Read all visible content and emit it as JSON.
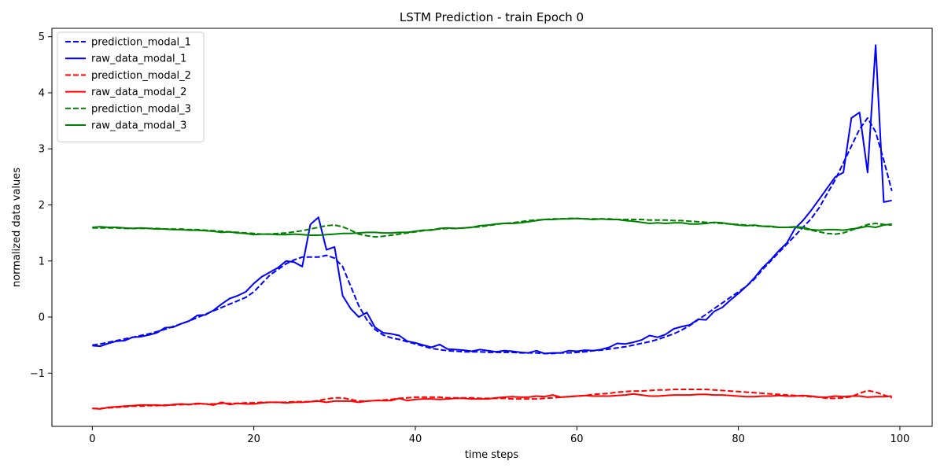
{
  "chart_data": {
    "type": "line",
    "title": "LSTM Prediction - train Epoch 0",
    "xlabel": "time steps",
    "ylabel": "normalized data values",
    "xlim": [
      -5,
      104
    ],
    "ylim": [
      -1.95,
      5.15
    ],
    "xticks": [
      0,
      20,
      40,
      60,
      80,
      100
    ],
    "xtick_labels": [
      "0",
      "20",
      "40",
      "60",
      "80",
      "100"
    ],
    "yticks": [
      -1,
      0,
      1,
      2,
      3,
      4,
      5
    ],
    "ytick_labels": [
      "−1",
      "0",
      "1",
      "2",
      "3",
      "4",
      "5"
    ],
    "grid": false,
    "legend_position": "top-left",
    "colors": {
      "modal_1": "#0000ff",
      "modal_2": "#ff0000",
      "modal_3": "#008000"
    },
    "x": [
      0,
      1,
      2,
      3,
      4,
      5,
      6,
      7,
      8,
      9,
      10,
      11,
      12,
      13,
      14,
      15,
      16,
      17,
      18,
      19,
      20,
      21,
      22,
      23,
      24,
      25,
      26,
      27,
      28,
      29,
      30,
      31,
      32,
      33,
      34,
      35,
      36,
      37,
      38,
      39,
      40,
      41,
      42,
      43,
      44,
      45,
      46,
      47,
      48,
      49,
      50,
      51,
      52,
      53,
      54,
      55,
      56,
      57,
      58,
      59,
      60,
      61,
      62,
      63,
      64,
      65,
      66,
      67,
      68,
      69,
      70,
      71,
      72,
      73,
      74,
      75,
      76,
      77,
      78,
      79,
      80,
      81,
      82,
      83,
      84,
      85,
      86,
      87,
      88,
      89,
      90,
      91,
      92,
      93,
      94,
      95,
      96,
      97,
      98,
      99
    ],
    "series": [
      {
        "name": "prediction_modal_1",
        "color": "#0000ff",
        "style": "dashed",
        "values": [
          -0.5,
          -0.48,
          -0.45,
          -0.42,
          -0.39,
          -0.36,
          -0.33,
          -0.3,
          -0.26,
          -0.22,
          -0.17,
          -0.12,
          -0.07,
          -0.01,
          0.05,
          0.11,
          0.17,
          0.23,
          0.29,
          0.35,
          0.45,
          0.6,
          0.75,
          0.85,
          0.95,
          1.02,
          1.07,
          1.07,
          1.07,
          1.1,
          1.05,
          0.9,
          0.55,
          0.2,
          -0.05,
          -0.22,
          -0.32,
          -0.37,
          -0.4,
          -0.44,
          -0.48,
          -0.52,
          -0.56,
          -0.58,
          -0.6,
          -0.61,
          -0.62,
          -0.62,
          -0.62,
          -0.63,
          -0.63,
          -0.63,
          -0.63,
          -0.64,
          -0.64,
          -0.64,
          -0.65,
          -0.65,
          -0.64,
          -0.64,
          -0.63,
          -0.62,
          -0.6,
          -0.59,
          -0.57,
          -0.55,
          -0.53,
          -0.5,
          -0.47,
          -0.44,
          -0.4,
          -0.35,
          -0.3,
          -0.23,
          -0.15,
          -0.05,
          0.05,
          0.15,
          0.25,
          0.35,
          0.45,
          0.55,
          0.68,
          0.85,
          1.0,
          1.15,
          1.3,
          1.45,
          1.6,
          1.75,
          1.95,
          2.2,
          2.45,
          2.75,
          3.05,
          3.35,
          3.55,
          3.3,
          2.8,
          2.25
        ]
      },
      {
        "name": "raw_data_modal_1",
        "color": "#0000ff",
        "style": "solid",
        "values": [
          -0.51,
          -0.52,
          -0.47,
          -0.43,
          -0.42,
          -0.36,
          -0.35,
          -0.32,
          -0.28,
          -0.19,
          -0.18,
          -0.12,
          -0.07,
          0.03,
          0.04,
          0.12,
          0.23,
          0.33,
          0.38,
          0.45,
          0.6,
          0.72,
          0.8,
          0.88,
          1.0,
          0.98,
          0.9,
          1.65,
          1.78,
          1.2,
          1.25,
          0.38,
          0.15,
          0.0,
          0.08,
          -0.18,
          -0.28,
          -0.3,
          -0.33,
          -0.43,
          -0.46,
          -0.5,
          -0.54,
          -0.49,
          -0.57,
          -0.58,
          -0.59,
          -0.61,
          -0.58,
          -0.6,
          -0.62,
          -0.6,
          -0.61,
          -0.63,
          -0.64,
          -0.6,
          -0.65,
          -0.64,
          -0.64,
          -0.6,
          -0.61,
          -0.59,
          -0.6,
          -0.58,
          -0.54,
          -0.47,
          -0.48,
          -0.45,
          -0.41,
          -0.33,
          -0.36,
          -0.31,
          -0.21,
          -0.17,
          -0.14,
          -0.04,
          -0.05,
          0.1,
          0.17,
          0.3,
          0.42,
          0.55,
          0.7,
          0.88,
          1.02,
          1.18,
          1.32,
          1.58,
          1.72,
          1.9,
          2.1,
          2.3,
          2.5,
          2.58,
          3.55,
          3.65,
          2.58,
          4.85,
          2.05,
          2.08
        ]
      },
      {
        "name": "prediction_modal_2",
        "color": "#ff0000",
        "style": "dashed",
        "values": [
          -1.63,
          -1.63,
          -1.62,
          -1.61,
          -1.6,
          -1.59,
          -1.59,
          -1.58,
          -1.58,
          -1.57,
          -1.57,
          -1.56,
          -1.56,
          -1.55,
          -1.55,
          -1.55,
          -1.54,
          -1.54,
          -1.54,
          -1.53,
          -1.53,
          -1.52,
          -1.52,
          -1.52,
          -1.52,
          -1.51,
          -1.51,
          -1.51,
          -1.49,
          -1.46,
          -1.44,
          -1.44,
          -1.47,
          -1.5,
          -1.5,
          -1.49,
          -1.48,
          -1.47,
          -1.45,
          -1.44,
          -1.43,
          -1.43,
          -1.43,
          -1.43,
          -1.44,
          -1.44,
          -1.44,
          -1.44,
          -1.45,
          -1.45,
          -1.45,
          -1.45,
          -1.46,
          -1.46,
          -1.46,
          -1.46,
          -1.45,
          -1.44,
          -1.43,
          -1.42,
          -1.41,
          -1.4,
          -1.38,
          -1.37,
          -1.36,
          -1.34,
          -1.33,
          -1.32,
          -1.32,
          -1.31,
          -1.3,
          -1.3,
          -1.29,
          -1.29,
          -1.29,
          -1.29,
          -1.29,
          -1.3,
          -1.31,
          -1.32,
          -1.33,
          -1.34,
          -1.35,
          -1.36,
          -1.37,
          -1.38,
          -1.39,
          -1.4,
          -1.41,
          -1.42,
          -1.43,
          -1.45,
          -1.45,
          -1.44,
          -1.42,
          -1.36,
          -1.31,
          -1.34,
          -1.39,
          -1.44
        ]
      },
      {
        "name": "raw_data_modal_2",
        "color": "#ff0000",
        "style": "solid",
        "values": [
          -1.63,
          -1.64,
          -1.61,
          -1.6,
          -1.59,
          -1.58,
          -1.57,
          -1.57,
          -1.57,
          -1.58,
          -1.56,
          -1.55,
          -1.56,
          -1.54,
          -1.55,
          -1.57,
          -1.52,
          -1.56,
          -1.54,
          -1.55,
          -1.55,
          -1.53,
          -1.52,
          -1.52,
          -1.53,
          -1.52,
          -1.52,
          -1.51,
          -1.5,
          -1.52,
          -1.5,
          -1.5,
          -1.5,
          -1.52,
          -1.5,
          -1.49,
          -1.49,
          -1.49,
          -1.45,
          -1.49,
          -1.47,
          -1.46,
          -1.46,
          -1.47,
          -1.46,
          -1.45,
          -1.45,
          -1.46,
          -1.46,
          -1.46,
          -1.44,
          -1.43,
          -1.42,
          -1.43,
          -1.43,
          -1.41,
          -1.42,
          -1.39,
          -1.43,
          -1.42,
          -1.41,
          -1.4,
          -1.41,
          -1.41,
          -1.41,
          -1.4,
          -1.39,
          -1.37,
          -1.39,
          -1.41,
          -1.41,
          -1.4,
          -1.39,
          -1.39,
          -1.39,
          -1.38,
          -1.38,
          -1.39,
          -1.39,
          -1.4,
          -1.41,
          -1.42,
          -1.42,
          -1.41,
          -1.41,
          -1.4,
          -1.41,
          -1.41,
          -1.4,
          -1.41,
          -1.43,
          -1.43,
          -1.41,
          -1.42,
          -1.41,
          -1.41,
          -1.43,
          -1.42,
          -1.42,
          -1.41
        ]
      },
      {
        "name": "prediction_modal_3",
        "color": "#008000",
        "style": "dashed",
        "values": [
          1.59,
          1.59,
          1.59,
          1.59,
          1.58,
          1.58,
          1.58,
          1.58,
          1.58,
          1.57,
          1.57,
          1.57,
          1.56,
          1.56,
          1.55,
          1.54,
          1.53,
          1.52,
          1.51,
          1.5,
          1.49,
          1.48,
          1.48,
          1.49,
          1.5,
          1.52,
          1.54,
          1.57,
          1.6,
          1.63,
          1.64,
          1.61,
          1.55,
          1.48,
          1.45,
          1.43,
          1.44,
          1.46,
          1.48,
          1.5,
          1.52,
          1.54,
          1.56,
          1.57,
          1.58,
          1.58,
          1.59,
          1.6,
          1.61,
          1.63,
          1.65,
          1.67,
          1.68,
          1.7,
          1.72,
          1.73,
          1.74,
          1.75,
          1.75,
          1.76,
          1.76,
          1.75,
          1.75,
          1.75,
          1.75,
          1.74,
          1.74,
          1.74,
          1.74,
          1.73,
          1.73,
          1.73,
          1.72,
          1.72,
          1.71,
          1.7,
          1.69,
          1.68,
          1.67,
          1.66,
          1.65,
          1.64,
          1.63,
          1.62,
          1.61,
          1.6,
          1.6,
          1.6,
          1.58,
          1.55,
          1.52,
          1.49,
          1.48,
          1.5,
          1.55,
          1.6,
          1.65,
          1.67,
          1.65,
          1.64
        ]
      },
      {
        "name": "raw_data_modal_3",
        "color": "#008000",
        "style": "solid",
        "values": [
          1.6,
          1.61,
          1.6,
          1.6,
          1.59,
          1.58,
          1.59,
          1.58,
          1.57,
          1.57,
          1.56,
          1.56,
          1.55,
          1.55,
          1.54,
          1.53,
          1.51,
          1.52,
          1.5,
          1.49,
          1.47,
          1.48,
          1.48,
          1.47,
          1.47,
          1.48,
          1.47,
          1.46,
          1.46,
          1.47,
          1.48,
          1.49,
          1.49,
          1.5,
          1.51,
          1.51,
          1.5,
          1.5,
          1.51,
          1.51,
          1.53,
          1.55,
          1.55,
          1.58,
          1.59,
          1.58,
          1.59,
          1.6,
          1.63,
          1.64,
          1.66,
          1.67,
          1.67,
          1.68,
          1.7,
          1.72,
          1.74,
          1.74,
          1.75,
          1.75,
          1.76,
          1.75,
          1.74,
          1.75,
          1.74,
          1.74,
          1.72,
          1.71,
          1.69,
          1.67,
          1.68,
          1.67,
          1.68,
          1.68,
          1.66,
          1.66,
          1.67,
          1.69,
          1.68,
          1.66,
          1.64,
          1.63,
          1.64,
          1.62,
          1.62,
          1.6,
          1.6,
          1.61,
          1.6,
          1.56,
          1.55,
          1.56,
          1.56,
          1.55,
          1.57,
          1.59,
          1.62,
          1.6,
          1.64,
          1.66
        ]
      }
    ]
  }
}
